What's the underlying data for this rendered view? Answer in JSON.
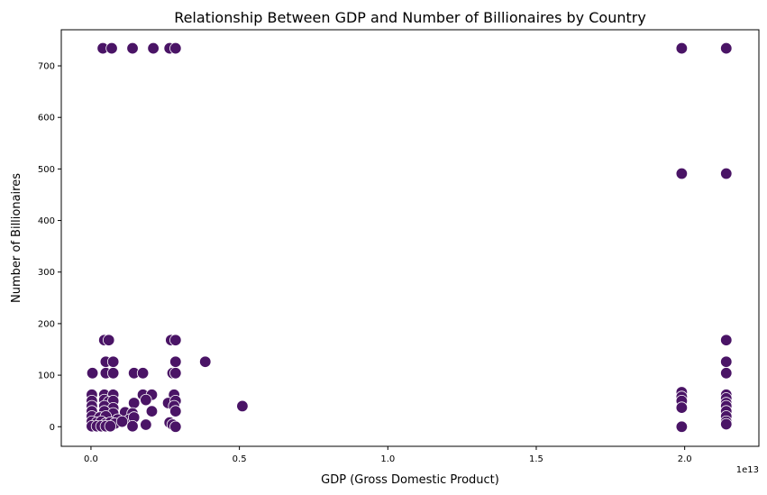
{
  "chart_data": {
    "type": "scatter",
    "title": "Relationship Between GDP and Number of Billionaires by Country",
    "xlabel": "GDP (Gross Domestic Product)",
    "ylabel": "Number of Billionaires",
    "x_offset_label": "1e13",
    "xlim": [
      -0.1,
      2.25
    ],
    "ylim": [
      -38,
      770
    ],
    "x_ticks": [
      0.0,
      0.5,
      1.0,
      1.5,
      2.0
    ],
    "x_tick_labels": [
      "0.0",
      "0.5",
      "1.0",
      "1.5",
      "2.0"
    ],
    "y_ticks": [
      0,
      100,
      200,
      300,
      400,
      500,
      600,
      700
    ],
    "y_tick_labels": [
      "0",
      "100",
      "200",
      "300",
      "400",
      "500",
      "600",
      "700"
    ],
    "grid": false,
    "marker_color": "#4a1466",
    "marker_edge_color": "#ffffff",
    "points": [
      {
        "x": 0.04,
        "y": 734
      },
      {
        "x": 0.07,
        "y": 734
      },
      {
        "x": 0.14,
        "y": 734
      },
      {
        "x": 0.21,
        "y": 734
      },
      {
        "x": 0.265,
        "y": 734
      },
      {
        "x": 0.285,
        "y": 734
      },
      {
        "x": 1.99,
        "y": 734
      },
      {
        "x": 2.14,
        "y": 734
      },
      {
        "x": 1.99,
        "y": 491
      },
      {
        "x": 2.14,
        "y": 491
      },
      {
        "x": 0.045,
        "y": 168
      },
      {
        "x": 0.06,
        "y": 168
      },
      {
        "x": 0.27,
        "y": 168
      },
      {
        "x": 0.285,
        "y": 168
      },
      {
        "x": 2.14,
        "y": 168
      },
      {
        "x": 0.05,
        "y": 126
      },
      {
        "x": 0.075,
        "y": 126
      },
      {
        "x": 0.285,
        "y": 126
      },
      {
        "x": 0.385,
        "y": 126
      },
      {
        "x": 2.14,
        "y": 126
      },
      {
        "x": 0.005,
        "y": 104
      },
      {
        "x": 0.05,
        "y": 104
      },
      {
        "x": 0.075,
        "y": 104
      },
      {
        "x": 0.145,
        "y": 104
      },
      {
        "x": 0.175,
        "y": 104
      },
      {
        "x": 0.275,
        "y": 104
      },
      {
        "x": 0.285,
        "y": 104
      },
      {
        "x": 2.14,
        "y": 104
      },
      {
        "x": 0.003,
        "y": 62
      },
      {
        "x": 0.045,
        "y": 62
      },
      {
        "x": 0.075,
        "y": 62
      },
      {
        "x": 0.175,
        "y": 62
      },
      {
        "x": 0.205,
        "y": 62
      },
      {
        "x": 0.28,
        "y": 62
      },
      {
        "x": 1.99,
        "y": 67
      },
      {
        "x": 2.14,
        "y": 62
      },
      {
        "x": 1.99,
        "y": 58
      },
      {
        "x": 2.14,
        "y": 55
      },
      {
        "x": 0.003,
        "y": 50
      },
      {
        "x": 0.045,
        "y": 52
      },
      {
        "x": 0.06,
        "y": 48
      },
      {
        "x": 0.075,
        "y": 50
      },
      {
        "x": 0.145,
        "y": 46
      },
      {
        "x": 0.185,
        "y": 52
      },
      {
        "x": 0.26,
        "y": 46
      },
      {
        "x": 0.285,
        "y": 50
      },
      {
        "x": 1.99,
        "y": 50
      },
      {
        "x": 2.14,
        "y": 46
      },
      {
        "x": 0.003,
        "y": 40
      },
      {
        "x": 0.045,
        "y": 40
      },
      {
        "x": 0.075,
        "y": 36
      },
      {
        "x": 0.28,
        "y": 40
      },
      {
        "x": 0.51,
        "y": 40
      },
      {
        "x": 1.99,
        "y": 37
      },
      {
        "x": 2.14,
        "y": 40
      },
      {
        "x": 0.003,
        "y": 30
      },
      {
        "x": 0.045,
        "y": 30
      },
      {
        "x": 0.075,
        "y": 26
      },
      {
        "x": 0.115,
        "y": 28
      },
      {
        "x": 0.14,
        "y": 26
      },
      {
        "x": 0.205,
        "y": 30
      },
      {
        "x": 0.285,
        "y": 30
      },
      {
        "x": 2.14,
        "y": 30
      },
      {
        "x": 0.003,
        "y": 20
      },
      {
        "x": 0.03,
        "y": 18
      },
      {
        "x": 0.05,
        "y": 20
      },
      {
        "x": 0.09,
        "y": 14
      },
      {
        "x": 0.13,
        "y": 14
      },
      {
        "x": 0.145,
        "y": 18
      },
      {
        "x": 2.14,
        "y": 20
      },
      {
        "x": 0.003,
        "y": 10
      },
      {
        "x": 0.02,
        "y": 8
      },
      {
        "x": 0.035,
        "y": 10
      },
      {
        "x": 0.05,
        "y": 6
      },
      {
        "x": 0.065,
        "y": 8
      },
      {
        "x": 0.08,
        "y": 6
      },
      {
        "x": 0.105,
        "y": 10
      },
      {
        "x": 0.185,
        "y": 4
      },
      {
        "x": 0.265,
        "y": 8
      },
      {
        "x": 0.275,
        "y": 4
      },
      {
        "x": 2.14,
        "y": 10
      },
      {
        "x": 2.14,
        "y": 5
      },
      {
        "x": 0.003,
        "y": 1
      },
      {
        "x": 0.02,
        "y": 1
      },
      {
        "x": 0.035,
        "y": 1
      },
      {
        "x": 0.05,
        "y": 1
      },
      {
        "x": 0.065,
        "y": 1
      },
      {
        "x": 0.14,
        "y": 1
      },
      {
        "x": 0.285,
        "y": 0
      },
      {
        "x": 1.99,
        "y": 0
      }
    ]
  }
}
